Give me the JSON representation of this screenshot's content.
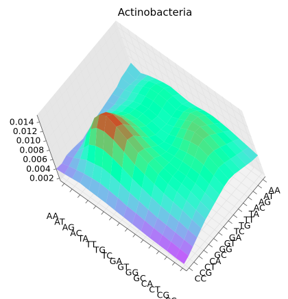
{
  "chart_data": {
    "type": "surface3d",
    "title": "Actinobacteria",
    "colormap": "rainbow",
    "x_labels": [
      "AA",
      "AT",
      "AG",
      "AC",
      "TA",
      "TT",
      "TG",
      "TC",
      "GA",
      "GT",
      "GG",
      "GC",
      "CA",
      "CT",
      "CG",
      "CC"
    ],
    "y_labels": [
      "AA",
      "AT",
      "AG",
      "AC",
      "TA",
      "TT",
      "TG",
      "TC",
      "GA",
      "GT",
      "GG",
      "GC",
      "CA",
      "CT",
      "CG",
      "CC"
    ],
    "z_ticks": [
      "0.002",
      "0.004",
      "0.006",
      "0.008",
      "0.010",
      "0.012",
      "0.014"
    ],
    "z_range": [
      0.0015,
      0.0155
    ],
    "grid": true,
    "z": [
      [
        0.004,
        0.0038,
        0.0042,
        0.0041,
        0.0039,
        0.0037,
        0.004,
        0.0043,
        0.0046,
        0.0048,
        0.005,
        0.0052,
        0.0054,
        0.006,
        0.0062,
        0.0065
      ],
      [
        0.0042,
        0.0045,
        0.005,
        0.0052,
        0.0055,
        0.0058,
        0.006,
        0.0062,
        0.006,
        0.0058,
        0.0056,
        0.0058,
        0.006,
        0.0058,
        0.0055,
        0.0056
      ],
      [
        0.0045,
        0.005,
        0.006,
        0.007,
        0.0085,
        0.009,
        0.0088,
        0.008,
        0.0075,
        0.007,
        0.0068,
        0.0065,
        0.0068,
        0.007,
        0.0068,
        0.0064
      ],
      [
        0.0048,
        0.0055,
        0.007,
        0.009,
        0.011,
        0.012,
        0.0115,
        0.01,
        0.0088,
        0.008,
        0.0078,
        0.0075,
        0.0078,
        0.008,
        0.0078,
        0.007
      ],
      [
        0.0046,
        0.0058,
        0.0075,
        0.01,
        0.0125,
        0.014,
        0.0132,
        0.0115,
        0.0098,
        0.0088,
        0.0085,
        0.0082,
        0.0085,
        0.0088,
        0.0085,
        0.0075
      ],
      [
        0.0045,
        0.006,
        0.008,
        0.0105,
        0.013,
        0.015,
        0.014,
        0.012,
        0.01,
        0.009,
        0.0088,
        0.0085,
        0.0088,
        0.009,
        0.0088,
        0.0078
      ],
      [
        0.0044,
        0.0058,
        0.0078,
        0.01,
        0.0125,
        0.014,
        0.0132,
        0.0115,
        0.0098,
        0.0088,
        0.0085,
        0.0082,
        0.0085,
        0.0088,
        0.0085,
        0.0075
      ],
      [
        0.0042,
        0.0055,
        0.0072,
        0.0092,
        0.0112,
        0.0125,
        0.012,
        0.0105,
        0.009,
        0.0082,
        0.008,
        0.0078,
        0.008,
        0.0082,
        0.008,
        0.0072
      ],
      [
        0.004,
        0.005,
        0.0065,
        0.0082,
        0.0098,
        0.011,
        0.0105,
        0.0095,
        0.0085,
        0.008,
        0.0082,
        0.0085,
        0.0088,
        0.009,
        0.0085,
        0.0074
      ],
      [
        0.0038,
        0.0048,
        0.006,
        0.0075,
        0.009,
        0.01,
        0.0098,
        0.009,
        0.0085,
        0.0085,
        0.009,
        0.0095,
        0.0098,
        0.01,
        0.0092,
        0.0078
      ],
      [
        0.0036,
        0.0045,
        0.0055,
        0.0068,
        0.0082,
        0.009,
        0.009,
        0.0088,
        0.0088,
        0.009,
        0.0098,
        0.0105,
        0.0108,
        0.0105,
        0.0095,
        0.008
      ],
      [
        0.0034,
        0.0042,
        0.005,
        0.0062,
        0.0075,
        0.0082,
        0.0085,
        0.0085,
        0.009,
        0.0095,
        0.0105,
        0.0112,
        0.011,
        0.01,
        0.009,
        0.0078
      ],
      [
        0.0033,
        0.004,
        0.0048,
        0.0058,
        0.007,
        0.0078,
        0.0082,
        0.0085,
        0.009,
        0.0098,
        0.0108,
        0.011,
        0.0105,
        0.0095,
        0.0085,
        0.0075
      ],
      [
        0.0032,
        0.0038,
        0.0045,
        0.0055,
        0.0065,
        0.0072,
        0.0078,
        0.0082,
        0.0088,
        0.0095,
        0.01,
        0.0098,
        0.0092,
        0.0085,
        0.0078,
        0.007
      ],
      [
        0.003,
        0.0036,
        0.0042,
        0.005,
        0.0058,
        0.0065,
        0.007,
        0.0075,
        0.008,
        0.0085,
        0.0088,
        0.0085,
        0.008,
        0.0075,
        0.007,
        0.0065
      ],
      [
        0.003,
        0.0034,
        0.004,
        0.0046,
        0.0052,
        0.0058,
        0.0062,
        0.0066,
        0.007,
        0.0074,
        0.0076,
        0.0074,
        0.007,
        0.0066,
        0.0062,
        0.006
      ]
    ]
  }
}
